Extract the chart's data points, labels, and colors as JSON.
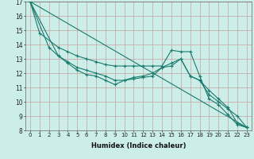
{
  "xlabel": "Humidex (Indice chaleur)",
  "ylabel": "",
  "bg_color": "#cceee8",
  "line_color": "#1a7a6e",
  "xlim": [
    -0.5,
    23.5
  ],
  "ylim": [
    8,
    17
  ],
  "xticks": [
    0,
    1,
    2,
    3,
    4,
    5,
    6,
    7,
    8,
    9,
    10,
    11,
    12,
    13,
    14,
    15,
    16,
    17,
    18,
    19,
    20,
    21,
    22,
    23
  ],
  "yticks": [
    8,
    9,
    10,
    11,
    12,
    13,
    14,
    15,
    16,
    17
  ],
  "series": [
    {
      "x": [
        0,
        1,
        3,
        4,
        5,
        6,
        7,
        8,
        9,
        10,
        11,
        12,
        13,
        14,
        15,
        16,
        17,
        18,
        19,
        20,
        21,
        22,
        23
      ],
      "y": [
        17.0,
        14.8,
        13.8,
        13.5,
        13.2,
        13.0,
        12.8,
        12.6,
        12.5,
        12.5,
        12.5,
        12.5,
        12.5,
        12.5,
        13.6,
        13.5,
        13.5,
        11.8,
        10.2,
        9.8,
        9.1,
        8.4,
        8.2
      ]
    },
    {
      "x": [
        0,
        2,
        3,
        4,
        5,
        6,
        7,
        8,
        9,
        10,
        11,
        12,
        13,
        14,
        15,
        16,
        17,
        18,
        19,
        20,
        21,
        22,
        23
      ],
      "y": [
        17.0,
        13.8,
        13.2,
        12.8,
        12.4,
        12.2,
        12.0,
        11.8,
        11.5,
        11.5,
        11.7,
        11.8,
        12.0,
        12.4,
        12.7,
        13.0,
        11.8,
        11.5,
        10.8,
        10.2,
        9.6,
        8.5,
        8.2
      ]
    },
    {
      "x": [
        0,
        3,
        4,
        5,
        6,
        7,
        8,
        9,
        10,
        11,
        12,
        13,
        14,
        15,
        16,
        17,
        18,
        19,
        20,
        21,
        22,
        23
      ],
      "y": [
        17.0,
        13.2,
        12.7,
        12.2,
        11.9,
        11.8,
        11.5,
        11.2,
        11.5,
        11.6,
        11.7,
        11.8,
        12.4,
        12.5,
        13.0,
        11.8,
        11.5,
        10.5,
        10.0,
        9.5,
        9.0,
        8.2
      ]
    },
    {
      "x": [
        0,
        23
      ],
      "y": [
        17.0,
        8.2
      ]
    }
  ]
}
